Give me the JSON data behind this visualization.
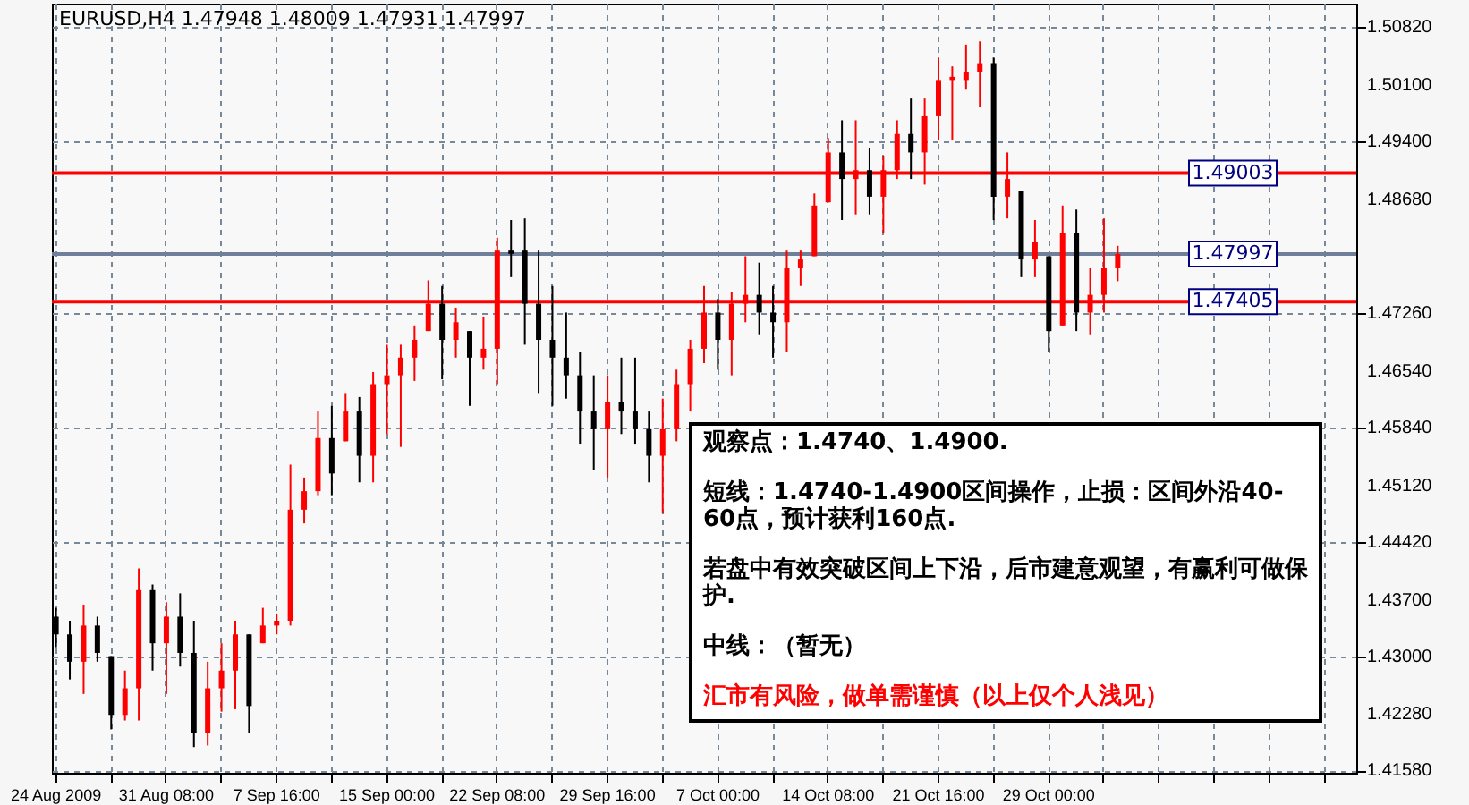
{
  "chart_data": {
    "type": "candlestick",
    "title": "EURUSD,H4  1.47948 1.48009 1.47931 1.47997",
    "categories": [
      "24 Aug 2009",
      null,
      null,
      null,
      null,
      null,
      null,
      null,
      "31 Aug 08:00",
      null,
      null,
      null,
      null,
      null,
      null,
      null,
      "7 Sep 16:00",
      null,
      null,
      null,
      null,
      null,
      null,
      null,
      "15 Sep 00:00",
      null,
      null,
      null,
      null,
      null,
      null,
      null,
      "22 Sep 08:00",
      null,
      null,
      null,
      null,
      null,
      null,
      null,
      "29 Sep 16:00",
      null,
      null,
      null,
      null,
      null,
      null,
      null,
      "7 Oct 00:00",
      null,
      null,
      null,
      null,
      null,
      null,
      null,
      "14 Oct 08:00",
      null,
      null,
      null,
      null,
      null,
      null,
      null,
      "21 Oct 16:00",
      null,
      null,
      null,
      null,
      null,
      null,
      null,
      "29 Oct 00:00",
      null,
      null,
      null,
      null,
      null,
      null,
      null,
      null,
      null,
      null,
      null,
      null,
      null,
      null,
      null,
      null,
      null,
      null,
      null,
      null,
      null,
      null
    ],
    "ohlc": [
      [
        1.4349,
        1.436,
        1.4311,
        1.4327
      ],
      [
        1.4327,
        1.4344,
        1.4271,
        1.4293
      ],
      [
        1.4293,
        1.4364,
        1.4253,
        1.4338
      ],
      [
        1.4338,
        1.4349,
        1.4293,
        1.4304
      ],
      [
        1.43,
        1.43,
        1.4209,
        1.4227
      ],
      [
        1.4227,
        1.4282,
        1.422,
        1.426
      ],
      [
        1.426,
        1.4409,
        1.422,
        1.4382
      ],
      [
        1.4382,
        1.4389,
        1.4282,
        1.4316
      ],
      [
        1.4316,
        1.4367,
        1.4253,
        1.4349
      ],
      [
        1.4349,
        1.4378,
        1.4287,
        1.4304
      ],
      [
        1.4304,
        1.4344,
        1.4187,
        1.4205
      ],
      [
        1.4205,
        1.4293,
        1.4189,
        1.426
      ],
      [
        1.426,
        1.4316,
        1.4231,
        1.4282
      ],
      [
        1.4282,
        1.4344,
        1.4234,
        1.4327
      ],
      [
        1.4327,
        1.4327,
        1.4205,
        1.4238
      ],
      [
        1.4316,
        1.436,
        1.4316,
        1.4338
      ],
      [
        1.4338,
        1.4353,
        1.4327,
        1.4344
      ],
      [
        1.4344,
        1.4538,
        1.4338,
        1.4482
      ],
      [
        1.4482,
        1.4522,
        1.4465,
        1.4505
      ],
      [
        1.4505,
        1.4604,
        1.45,
        1.4571
      ],
      [
        1.4571,
        1.4611,
        1.45,
        1.4527
      ],
      [
        1.4567,
        1.4627,
        1.4567,
        1.4604
      ],
      [
        1.4604,
        1.4622,
        1.4516,
        1.4549
      ],
      [
        1.4549,
        1.4653,
        1.4516,
        1.4638
      ],
      [
        1.4638,
        1.4687,
        1.4576,
        1.4649
      ],
      [
        1.4649,
        1.4687,
        1.456,
        1.4671
      ],
      [
        1.4671,
        1.4711,
        1.4642,
        1.4693
      ],
      [
        1.4704,
        1.4767,
        1.4704,
        1.4738
      ],
      [
        1.4738,
        1.476,
        1.4644,
        1.4693
      ],
      [
        1.4693,
        1.4733,
        1.4671,
        1.4715
      ],
      [
        1.4704,
        1.4704,
        1.4611,
        1.4671
      ],
      [
        1.4671,
        1.4722,
        1.4656,
        1.4682
      ],
      [
        1.4682,
        1.482,
        1.4638,
        1.4804
      ],
      [
        1.4804,
        1.4842,
        1.4771,
        1.48
      ],
      [
        1.4804,
        1.4844,
        1.4687,
        1.4738
      ],
      [
        1.4738,
        1.4804,
        1.4627,
        1.4693
      ],
      [
        1.4693,
        1.476,
        1.4611,
        1.4671
      ],
      [
        1.4671,
        1.4727,
        1.462,
        1.4649
      ],
      [
        1.4649,
        1.4678,
        1.4564,
        1.4604
      ],
      [
        1.4604,
        1.4649,
        1.4531,
        1.4582
      ],
      [
        1.4582,
        1.4649,
        1.4522,
        1.4616
      ],
      [
        1.4616,
        1.4671,
        1.4576,
        1.4604
      ],
      [
        1.4604,
        1.4671,
        1.4564,
        1.4582
      ],
      [
        1.4582,
        1.4604,
        1.4516,
        1.4549
      ],
      [
        1.4549,
        1.462,
        1.4478,
        1.4582
      ],
      [
        1.4582,
        1.4656,
        1.4567,
        1.4638
      ],
      [
        1.4638,
        1.4693,
        1.4604,
        1.4682
      ],
      [
        1.4682,
        1.476,
        1.4664,
        1.4727
      ],
      [
        1.4727,
        1.4744,
        1.4656,
        1.4693
      ],
      [
        1.4693,
        1.4753,
        1.4649,
        1.4738
      ],
      [
        1.4738,
        1.4797,
        1.4715,
        1.4749
      ],
      [
        1.4749,
        1.4789,
        1.47,
        1.4727
      ],
      [
        1.4727,
        1.476,
        1.4671,
        1.4715
      ],
      [
        1.4715,
        1.4804,
        1.4678,
        1.4782
      ],
      [
        1.4782,
        1.4804,
        1.476,
        1.4793
      ],
      [
        1.4797,
        1.4875,
        1.4797,
        1.486
      ],
      [
        1.4864,
        1.4944,
        1.4864,
        1.4926
      ],
      [
        1.4926,
        1.4966,
        1.4842,
        1.4893
      ],
      [
        1.4893,
        1.4966,
        1.4849,
        1.4904
      ],
      [
        1.4904,
        1.4931,
        1.4849,
        1.4871
      ],
      [
        1.4871,
        1.4922,
        1.4826,
        1.4904
      ],
      [
        1.4904,
        1.4966,
        1.4893,
        1.4949
      ],
      [
        1.4949,
        1.4993,
        1.4893,
        1.4926
      ],
      [
        1.4926,
        1.4993,
        1.4886,
        1.4971
      ],
      [
        1.4971,
        1.5044,
        1.4942,
        1.5015
      ],
      [
        1.5015,
        1.5033,
        1.4942,
        1.502
      ],
      [
        1.5015,
        1.506,
        1.5004,
        1.5026
      ],
      [
        1.5026,
        1.5064,
        1.4982,
        1.5037
      ],
      [
        1.5037,
        1.5044,
        1.4842,
        1.4871
      ],
      [
        1.4871,
        1.4926,
        1.4844,
        1.4893
      ],
      [
        1.4878,
        1.4878,
        1.4771,
        1.4793
      ],
      [
        1.4793,
        1.4842,
        1.4771,
        1.4815
      ],
      [
        1.4797,
        1.4797,
        1.4678,
        1.4704
      ],
      [
        1.4711,
        1.486,
        1.4711,
        1.4826
      ],
      [
        1.4826,
        1.4855,
        1.4704,
        1.4727
      ],
      [
        1.4727,
        1.4782,
        1.47,
        1.4749
      ],
      [
        1.4749,
        1.4844,
        1.4727,
        1.4782
      ],
      [
        1.4782,
        1.481,
        1.4766,
        1.47997
      ],
      null,
      null,
      null,
      null,
      null,
      null,
      null,
      null,
      null,
      null,
      null,
      null,
      null,
      null,
      null,
      null,
      null
    ],
    "colors": [
      "#000000",
      "#000000",
      "#ff0000",
      "#000000",
      "#000000",
      "#ff0000",
      "#ff0000",
      "#000000",
      "#ff0000",
      "#000000",
      "#000000",
      "#ff0000",
      "#ff0000",
      "#ff0000",
      "#000000",
      "#ff0000",
      "#ff0000",
      "#ff0000",
      "#ff0000",
      "#ff0000",
      "#000000",
      "#ff0000",
      "#000000",
      "#ff0000",
      "#ff0000",
      "#ff0000",
      "#ff0000",
      "#ff0000",
      "#000000",
      "#ff0000",
      "#000000",
      "#ff0000",
      "#ff0000",
      "#000000",
      "#000000",
      "#000000",
      "#000000",
      "#000000",
      "#000000",
      "#000000",
      "#ff0000",
      "#000000",
      "#000000",
      "#000000",
      "#ff0000",
      "#ff0000",
      "#ff0000",
      "#ff0000",
      "#000000",
      "#ff0000",
      "#ff0000",
      "#000000",
      "#000000",
      "#ff0000",
      "#ff0000",
      "#ff0000",
      "#ff0000",
      "#000000",
      "#ff0000",
      "#000000",
      "#ff0000",
      "#ff0000",
      "#000000",
      "#ff0000",
      "#ff0000",
      "#ff0000",
      "#ff0000",
      "#ff0000",
      "#000000",
      "#ff0000",
      "#000000",
      "#ff0000",
      "#000000",
      "#ff0000",
      "#000000",
      "#ff0000",
      "#ff0000",
      "#ff0000",
      null,
      null,
      null,
      null,
      null,
      null,
      null,
      null,
      null,
      null,
      null,
      null,
      null,
      null,
      null,
      null,
      null
    ],
    "ylim": [
      1.4155,
      1.5111
    ],
    "yticks": [
      {
        "value": 1.5082,
        "label": "1.50820"
      },
      {
        "value": 1.501,
        "label": "1.50100"
      },
      {
        "value": 1.494,
        "label": "1.49400"
      },
      {
        "value": 1.4868,
        "label": "1.48680"
      },
      {
        "value": 1.4726,
        "label": "1.47260"
      },
      {
        "value": 1.4654,
        "label": "1.46540"
      },
      {
        "value": 1.4584,
        "label": "1.45840"
      },
      {
        "value": 1.4512,
        "label": "1.45120"
      },
      {
        "value": 1.4442,
        "label": "1.44420"
      },
      {
        "value": 1.437,
        "label": "1.43700"
      },
      {
        "value": 1.43,
        "label": "1.43000"
      },
      {
        "value": 1.4228,
        "label": "1.42280"
      },
      {
        "value": 1.4158,
        "label": "1.41580"
      }
    ],
    "grid": true,
    "ref_lines": [
      {
        "axis": "y",
        "value": 1.47997,
        "label": "1.47997",
        "color": "#6f7f99"
      },
      {
        "axis": "y",
        "value": 1.49003,
        "label": "1.49003",
        "color": "#ff0000"
      },
      {
        "axis": "y",
        "value": 1.47405,
        "label": "1.47405",
        "color": "#ff0000"
      }
    ],
    "annotations": [
      "观察点：1.4740、1.4900.",
      "短线：1.4740-1.4900区间操作，止损：区间外沿40-60点，预计获利160点.",
      "若盘中有效突破区间上下沿，后市建意观望，有赢利可做保护.",
      "中线：（暂无）",
      "汇市有风险，做单需谨慎（以上仅个人浅见）"
    ]
  }
}
